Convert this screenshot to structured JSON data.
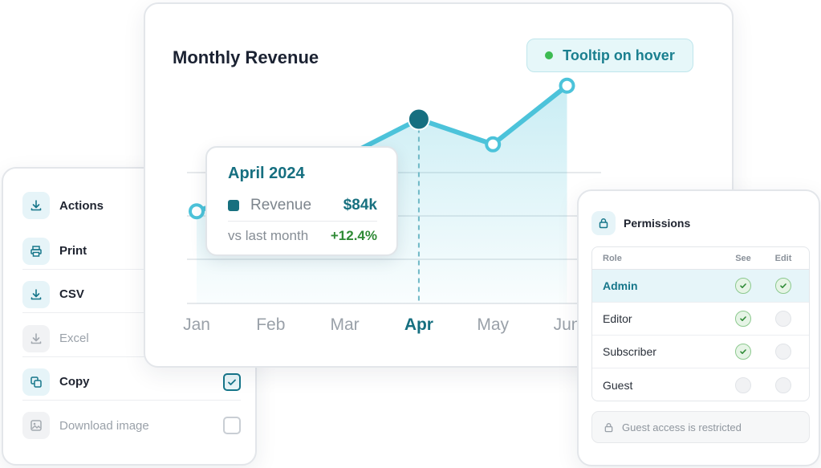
{
  "actions": {
    "header_label": "Actions",
    "items": [
      {
        "label": "Print",
        "icon": "printer-icon",
        "enabled": true
      },
      {
        "label": "CSV",
        "icon": "download-icon",
        "enabled": true
      },
      {
        "label": "Excel",
        "icon": "download-icon",
        "enabled": false
      },
      {
        "label": "Copy",
        "icon": "copy-icon",
        "enabled": true,
        "checked": true
      },
      {
        "label": "Download image",
        "icon": "image-icon",
        "enabled": false,
        "checked": false
      }
    ]
  },
  "chart_card": {
    "title": "Monthly Revenue",
    "badge": "Tooltip on hover",
    "tooltip": {
      "title": "April 2024",
      "series_label": "Revenue",
      "series_value": "$84k",
      "compare_label": "vs last month",
      "compare_value": "+12.4%"
    }
  },
  "chart_data": {
    "type": "area",
    "categories": [
      "Jan",
      "Feb",
      "Mar",
      "Apr",
      "May",
      "Jun"
    ],
    "highlighted_category": "Apr",
    "series": [
      {
        "values": [
          62,
          68,
          75,
          84,
          78,
          92
        ]
      }
    ],
    "ylim": [
      40,
      100
    ],
    "grid": true
  },
  "permissions": {
    "title": "Permissions",
    "columns": {
      "role": "Role",
      "see": "See",
      "edit": "Edit"
    },
    "rows": [
      {
        "role": "Admin",
        "see": true,
        "edit": true,
        "active": true
      },
      {
        "role": "Editor",
        "see": true,
        "edit": false,
        "active": false
      },
      {
        "role": "Subscriber",
        "see": true,
        "edit": false,
        "active": false
      },
      {
        "role": "Guest",
        "see": false,
        "edit": false,
        "active": false
      }
    ],
    "note": "Guest access is restricted"
  },
  "colors": {
    "accent": "#16768a",
    "line": "#4cc3da",
    "positive": "#2f8a36",
    "badge_dot": "#3dbb52"
  }
}
